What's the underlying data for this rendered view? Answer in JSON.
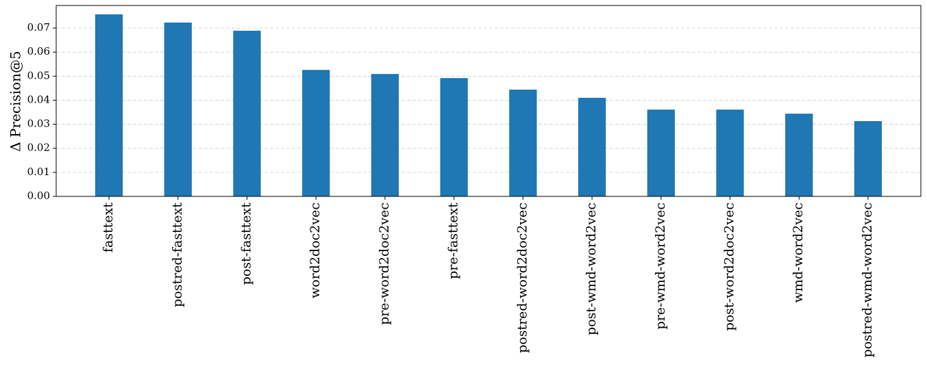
{
  "chart_data": {
    "type": "bar",
    "y_label": "Δ Precision@5",
    "categories": [
      "fasttext",
      "postred-fasttext",
      "post-fasttext",
      "word2doc2vec",
      "pre-word2doc2vec",
      "pre-fasttext",
      "postred-word2doc2vec",
      "post-wmd-word2vec",
      "pre-wmd-word2vec",
      "post-word2doc2vec",
      "wmd-word2vec",
      "postred-wmd-word2vec"
    ],
    "values": [
      0.0757,
      0.0723,
      0.0689,
      0.0526,
      0.0509,
      0.0492,
      0.0444,
      0.041,
      0.0361,
      0.0361,
      0.0344,
      0.0313
    ],
    "color": "#1f77b4",
    "ylim": [
      0,
      0.0794
    ],
    "yticks": [
      {
        "value": 0,
        "label": "0.00"
      },
      0.01,
      0.02,
      0.03,
      0.04,
      0.05,
      0.06,
      0.07
    ],
    "grid": true
  }
}
